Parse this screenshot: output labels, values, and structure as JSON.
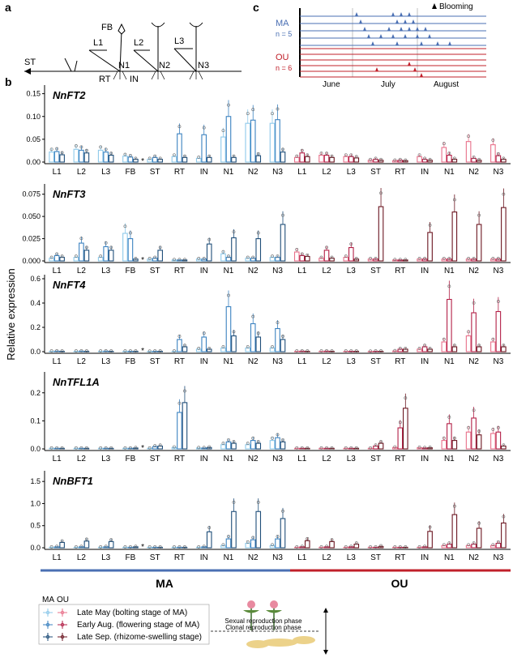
{
  "panel_labels": {
    "a": "a",
    "b": "b",
    "c": "c"
  },
  "diagram_a": {
    "labels": [
      "ST",
      "L1",
      "FB",
      "L2",
      "L3",
      "RT",
      "N1",
      "IN",
      "N2",
      "N3"
    ]
  },
  "diagram_c": {
    "legend": "Blooming",
    "ma_label": "MA",
    "ma_n": "n = 5",
    "ou_label": "OU",
    "ou_n": "n = 6",
    "months": [
      "June",
      "July",
      "August"
    ],
    "colors": {
      "ma": "#4a6fb3",
      "ou": "#c0202a"
    }
  },
  "y_axis_title": "Relative expression",
  "phase_bar": {
    "left": "MA",
    "right": "OU"
  },
  "legend": {
    "headers": [
      "MA",
      "OU"
    ],
    "items": [
      "Late May (bolting stage of MA)",
      "Early Aug. (flowering stage of MA)",
      "Late Sep. (rhizome-swelling stage)"
    ],
    "phases": [
      "Sexual reproduction phase",
      "Clonal reproduction phase"
    ]
  },
  "colors": {
    "ma": [
      "#8ec9ea",
      "#3b82c0",
      "#1f4e79"
    ],
    "ou": [
      "#e8708a",
      "#b32047",
      "#6b1520"
    ]
  },
  "chart_data": [
    {
      "type": "bar",
      "title": "NnFT2",
      "categories": [
        "L1",
        "L2",
        "L3",
        "FB",
        "ST",
        "RT",
        "IN",
        "N1",
        "N2",
        "N3",
        "L1",
        "L2",
        "L3",
        "ST",
        "RT",
        "IN",
        "N1",
        "N2",
        "N3"
      ],
      "ylim": [
        0,
        0.16
      ],
      "yticks": [
        "0.00",
        "0.05",
        "0.10",
        "0.15"
      ],
      "star_after": "FB",
      "series": [
        {
          "name": "Late May",
          "values": [
            0.022,
            0.028,
            0.026,
            0.013,
            0.006,
            0.012,
            0.008,
            0.055,
            0.085,
            0.085,
            0.01,
            0.015,
            0.012,
            0.004,
            0.003,
            0.012,
            0.032,
            0.045,
            0.038
          ]
        },
        {
          "name": "Early Aug.",
          "values": [
            0.023,
            0.026,
            0.022,
            0.011,
            0.01,
            0.062,
            0.06,
            0.1,
            0.092,
            0.093,
            0.02,
            0.015,
            0.012,
            0.006,
            0.004,
            0.006,
            0.015,
            0.008,
            0.014
          ]
        },
        {
          "name": "Late Sep.",
          "values": [
            0.016,
            0.02,
            0.015,
            0.006,
            0.006,
            0.01,
            0.01,
            0.01,
            0.014,
            0.022,
            0.012,
            0.01,
            0.009,
            0.004,
            0.003,
            0.004,
            0.006,
            0.004,
            0.006
          ]
        }
      ]
    },
    {
      "type": "bar",
      "title": "NnFT3",
      "categories": [
        "L1",
        "L2",
        "L3",
        "FB",
        "ST",
        "RT",
        "IN",
        "N1",
        "N2",
        "N3",
        "L1",
        "L2",
        "L3",
        "ST",
        "RT",
        "IN",
        "N1",
        "N2",
        "N3"
      ],
      "ylim": [
        0,
        0.082
      ],
      "yticks": [
        "0.000",
        "0.025",
        "0.050",
        "0.075"
      ],
      "star_after": "FB",
      "series": [
        {
          "name": "Late May",
          "values": [
            0.003,
            0.004,
            0.004,
            0.031,
            0.002,
            0.001,
            0.002,
            0.008,
            0.003,
            0.004,
            0.01,
            0.003,
            0.004,
            0.002,
            0.001,
            0.002,
            0.002,
            0.002,
            0.002
          ]
        },
        {
          "name": "Early Aug.",
          "values": [
            0.006,
            0.02,
            0.016,
            0.025,
            0.003,
            0.001,
            0.002,
            0.004,
            0.003,
            0.004,
            0.006,
            0.012,
            0.015,
            0.002,
            0.001,
            0.002,
            0.002,
            0.002,
            0.002
          ]
        },
        {
          "name": "Late Sep.",
          "values": [
            0.004,
            0.012,
            0.012,
            0.002,
            0.012,
            0.001,
            0.019,
            0.026,
            0.025,
            0.041,
            0.005,
            0.003,
            0.002,
            0.061,
            0.001,
            0.032,
            0.055,
            0.041,
            0.06
          ]
        }
      ]
    },
    {
      "type": "bar",
      "title": "NnFT4",
      "categories": [
        "L1",
        "L2",
        "L3",
        "FB",
        "ST",
        "RT",
        "IN",
        "N1",
        "N2",
        "N3",
        "L1",
        "L2",
        "L3",
        "ST",
        "RT",
        "IN",
        "N1",
        "N2",
        "N3"
      ],
      "ylim": [
        0,
        0.6
      ],
      "yticks": [
        "0.0",
        "0.2",
        "0.4",
        "0.6"
      ],
      "star_after": "FB",
      "series": [
        {
          "name": "Late May",
          "values": [
            0.003,
            0.003,
            0.003,
            0.003,
            0.002,
            0.003,
            0.02,
            0.03,
            0.03,
            0.03,
            0.003,
            0.003,
            0.003,
            0.002,
            0.005,
            0.02,
            0.08,
            0.13,
            0.08
          ]
        },
        {
          "name": "Early Aug.",
          "values": [
            0.004,
            0.004,
            0.004,
            0.003,
            0.003,
            0.1,
            0.12,
            0.37,
            0.23,
            0.19,
            0.004,
            0.004,
            0.003,
            0.003,
            0.02,
            0.04,
            0.43,
            0.32,
            0.33
          ]
        },
        {
          "name": "Late Sep.",
          "values": [
            0.003,
            0.003,
            0.003,
            0.003,
            0.003,
            0.04,
            0.02,
            0.13,
            0.12,
            0.1,
            0.003,
            0.003,
            0.003,
            0.003,
            0.02,
            0.02,
            0.04,
            0.04,
            0.04
          ]
        }
      ]
    },
    {
      "type": "bar",
      "title": "NnTFL1A",
      "categories": [
        "L1",
        "L2",
        "L3",
        "FB",
        "ST",
        "RT",
        "IN",
        "N1",
        "N2",
        "N3",
        "L1",
        "L2",
        "L3",
        "ST",
        "RT",
        "IN",
        "N1",
        "N2",
        "N3"
      ],
      "ylim": [
        0,
        0.26
      ],
      "yticks": [
        "0.0",
        "0.1",
        "0.2"
      ],
      "star_after": "FB",
      "series": [
        {
          "name": "Late May",
          "values": [
            0.002,
            0.002,
            0.002,
            0.002,
            0.002,
            0.005,
            0.003,
            0.015,
            0.015,
            0.03,
            0.002,
            0.002,
            0.002,
            0.002,
            0.005,
            0.004,
            0.03,
            0.06,
            0.055
          ]
        },
        {
          "name": "Early Aug.",
          "values": [
            0.002,
            0.002,
            0.002,
            0.002,
            0.008,
            0.13,
            0.003,
            0.025,
            0.03,
            0.04,
            0.002,
            0.002,
            0.002,
            0.01,
            0.075,
            0.003,
            0.09,
            0.11,
            0.06
          ]
        },
        {
          "name": "Late Sep.",
          "values": [
            0.002,
            0.002,
            0.002,
            0.003,
            0.01,
            0.165,
            0.005,
            0.02,
            0.02,
            0.025,
            0.002,
            0.002,
            0.002,
            0.02,
            0.145,
            0.004,
            0.03,
            0.05,
            0.01
          ]
        }
      ]
    },
    {
      "type": "bar",
      "title": "NnBFT1",
      "categories": [
        "L1",
        "L2",
        "L3",
        "FB",
        "ST",
        "RT",
        "IN",
        "N1",
        "N2",
        "N3",
        "L1",
        "L2",
        "L3",
        "ST",
        "RT",
        "IN",
        "N1",
        "N2",
        "N3"
      ],
      "ylim": [
        0,
        1.65
      ],
      "yticks": [
        "0.0",
        "0.5",
        "1.0",
        "1.5"
      ],
      "star_after": "FB",
      "series": [
        {
          "name": "Late May",
          "values": [
            0.01,
            0.01,
            0.01,
            0.01,
            0.01,
            0.01,
            0.01,
            0.05,
            0.1,
            0.05,
            0.01,
            0.01,
            0.01,
            0.01,
            0.01,
            0.01,
            0.05,
            0.05,
            0.05
          ]
        },
        {
          "name": "Early Aug.",
          "values": [
            0.02,
            0.02,
            0.02,
            0.01,
            0.01,
            0.01,
            0.02,
            0.2,
            0.18,
            0.2,
            0.02,
            0.02,
            0.02,
            0.01,
            0.01,
            0.02,
            0.08,
            0.08,
            0.1
          ]
        },
        {
          "name": "Late Sep.",
          "values": [
            0.12,
            0.15,
            0.14,
            0.02,
            0.01,
            0.01,
            0.36,
            0.82,
            0.82,
            0.66,
            0.16,
            0.14,
            0.08,
            0.03,
            0.01,
            0.37,
            0.75,
            0.44,
            0.56
          ]
        }
      ]
    }
  ]
}
